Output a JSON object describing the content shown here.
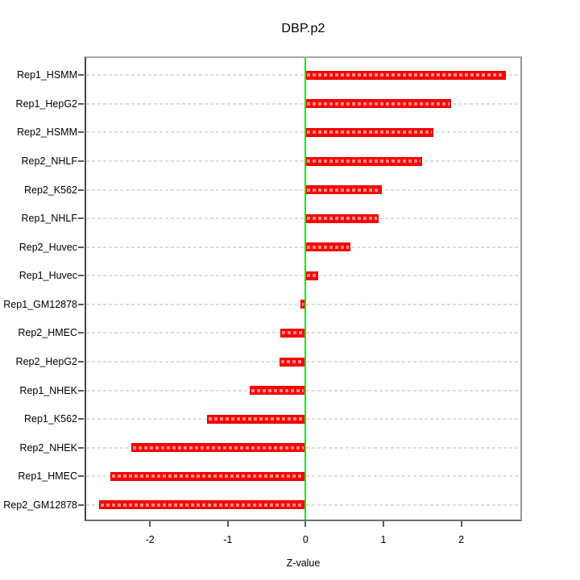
{
  "chart_data": {
    "type": "bar",
    "orientation": "horizontal",
    "title": "DBP.p2",
    "xlabel": "Z-value",
    "ylabel": "",
    "categories": [
      "Rep1_HSMM",
      "Rep1_HepG2",
      "Rep2_HSMM",
      "Rep2_NHLF",
      "Rep2_K562",
      "Rep1_NHLF",
      "Rep2_Huvec",
      "Rep1_Huvec",
      "Rep1_GM12878",
      "Rep2_HMEC",
      "Rep2_HepG2",
      "Rep1_NHEK",
      "Rep1_K562",
      "Rep2_NHEK",
      "Rep1_HMEC",
      "Rep2_GM12878"
    ],
    "values": [
      2.57,
      1.87,
      1.64,
      1.5,
      0.98,
      0.94,
      0.58,
      0.16,
      -0.07,
      -0.33,
      -0.34,
      -0.72,
      -1.27,
      -2.24,
      -2.51,
      -2.65
    ],
    "xlim": [
      -2.84,
      2.78
    ],
    "xticks": [
      -2,
      -1,
      0,
      1,
      2
    ],
    "xtick_labels": [
      "-2",
      "-1",
      "0",
      "1",
      "2"
    ],
    "grid": "horizontal dashed line per category",
    "legend": "none",
    "zero_reference_line": 0,
    "colors": {
      "bar_fill": "#ff0000",
      "bar_edge": "#e00000",
      "bar_inner_dash": "rgba(255,255,255,0.55)",
      "zero_line": "#00ee00",
      "gridline": "#dcdcdc",
      "box": "#979797",
      "text": "#000000",
      "background": "#ffffff"
    }
  }
}
